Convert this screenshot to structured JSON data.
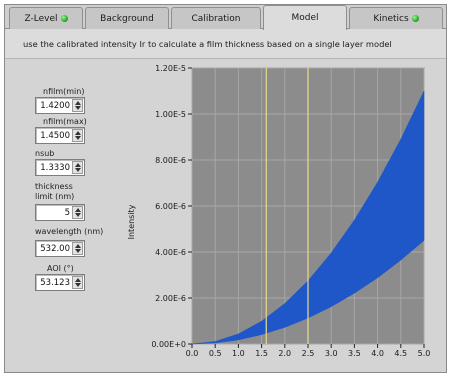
{
  "tabs": [
    {
      "label": "Z-Level",
      "has_led": true,
      "active": false
    },
    {
      "label": "Background",
      "has_led": false,
      "active": false
    },
    {
      "label": "Calibration",
      "has_led": false,
      "active": false
    },
    {
      "label": "Model",
      "has_led": false,
      "active": true
    },
    {
      "label": "Kinetics",
      "has_led": true,
      "active": false
    }
  ],
  "led_color": "#18b018",
  "description": "use the calibrated intensity Ir to calculate a film thickness based on a single layer model",
  "controls": {
    "nfilm_min": {
      "label": "nfilm(min)",
      "value": "1.4200"
    },
    "nfilm_max": {
      "label": "nfilm(max)",
      "value": "1.4500"
    },
    "nsub": {
      "label": "nsub",
      "value": "1.3330"
    },
    "thickness_limit": {
      "label_line1": "thickness",
      "label_line2": "limit (nm)",
      "value": "5"
    },
    "wavelength": {
      "label": "wavelength (nm)",
      "value": "532.00"
    },
    "aoi": {
      "label": "AOI (°)",
      "value": "53.123"
    }
  },
  "chart_data": {
    "type": "area",
    "ylabel": "Intensity",
    "xlabel": "",
    "x_ticks": [
      "0.0",
      "0.5",
      "1.0",
      "1.5",
      "2.0",
      "2.5",
      "3.0",
      "3.5",
      "4.0",
      "4.5",
      "5.0"
    ],
    "y_ticks": [
      "0.00E+0",
      "2.00E-6",
      "4.00E-6",
      "6.00E-6",
      "8.00E-6",
      "1.00E-5",
      "1.20E-5"
    ],
    "xlim": [
      0,
      5
    ],
    "ylim": [
      0,
      1.2e-05
    ],
    "grid": true,
    "plot_background": "#8c8c8c",
    "fill_color": "#1f57c8",
    "cursor_color": "#e8dc8a",
    "cursors_x": [
      1.6,
      2.5
    ],
    "band": {
      "x": [
        0.0,
        0.5,
        1.0,
        1.5,
        2.0,
        2.5,
        3.0,
        3.5,
        4.0,
        4.5,
        5.0
      ],
      "upper": [
        0.0,
        1.1e-07,
        4.4e-07,
        9.9e-07,
        1.76e-06,
        2.75e-06,
        3.96e-06,
        5.39e-06,
        7.04e-06,
        8.91e-06,
        1.1e-05
      ],
      "lower": [
        0.0,
        4.5e-08,
        1.8e-07,
        4.1e-07,
        7.2e-07,
        1.13e-06,
        1.62e-06,
        2.21e-06,
        2.88e-06,
        3.65e-06,
        4.5e-06
      ]
    }
  }
}
